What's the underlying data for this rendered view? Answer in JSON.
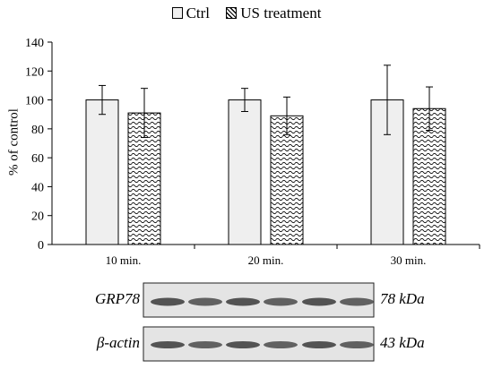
{
  "legend": [
    {
      "label": "Ctrl",
      "key": "ctrl"
    },
    {
      "label": "US treatment",
      "key": "us"
    }
  ],
  "chart_data": {
    "type": "bar",
    "title": "",
    "xlabel": "",
    "ylabel": "% of control",
    "ylim": [
      0,
      140
    ],
    "yticks": [
      0,
      20,
      40,
      60,
      80,
      100,
      120,
      140
    ],
    "categories": [
      "10 min.",
      "20 min.",
      "30 min."
    ],
    "series": [
      {
        "name": "Ctrl",
        "values": [
          100,
          100,
          100
        ],
        "error": [
          10,
          8,
          24
        ],
        "fill": "#efefef"
      },
      {
        "name": "US treatment",
        "values": [
          91,
          89,
          94
        ],
        "error": [
          17,
          13,
          15
        ],
        "fill": "wave-pattern"
      }
    ],
    "grid": false,
    "legend_position": "top-center"
  },
  "blot": {
    "rows": [
      {
        "protein": "GRP78",
        "size": "78 kDa"
      },
      {
        "protein": "β-actin",
        "size": "43 kDa"
      }
    ]
  }
}
